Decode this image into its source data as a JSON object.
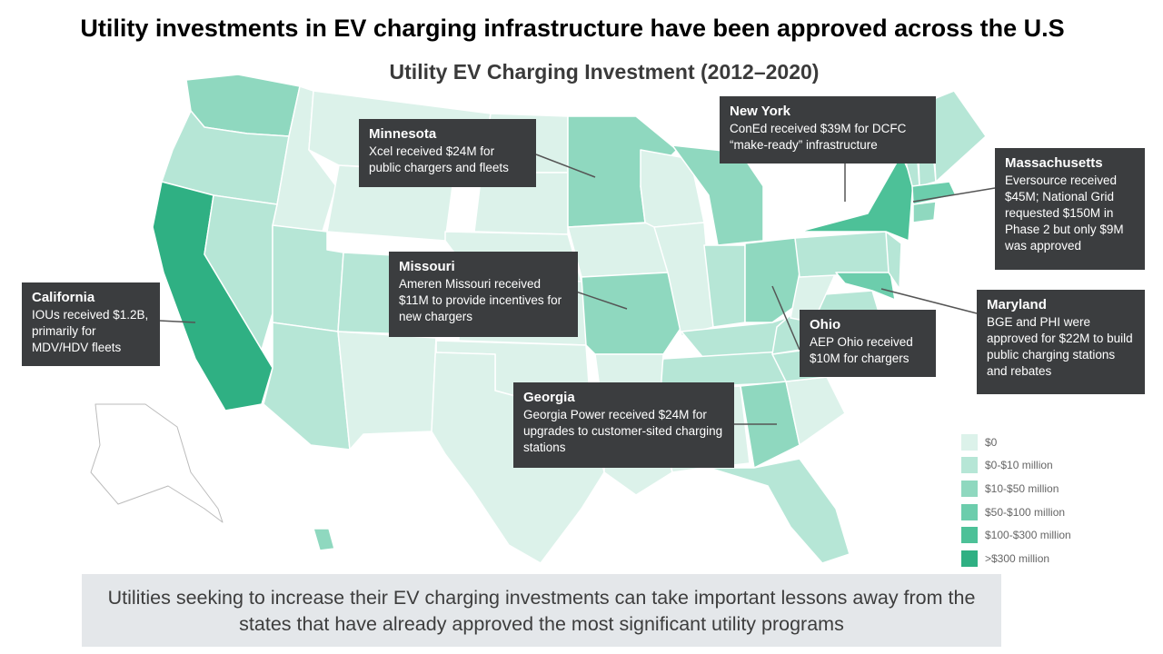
{
  "headline": "Utility investments in EV charging infrastructure have been approved across the U.S",
  "map_title": "Utility EV Charging Investment (2012–2020)",
  "colors": {
    "state_border": "#ffffff",
    "callout_bg": "#3b3d3f",
    "bottom_bg": "#e4e7ea"
  },
  "legend": [
    {
      "label": "$0",
      "color": "#dcf2ea"
    },
    {
      "label": "$0-$10 million",
      "color": "#b6e6d6"
    },
    {
      "label": "$10-$50 million",
      "color": "#8fd8bf"
    },
    {
      "label": "$50-$100 million",
      "color": "#6ccdac"
    },
    {
      "label": "$100-$300 million",
      "color": "#4dc198"
    },
    {
      "label": ">$300 million",
      "color": "#2fb083"
    }
  ],
  "callouts": {
    "california": {
      "state": "California",
      "text": "IOUs received $1.2B, primarily for MDV/HDV fleets"
    },
    "minnesota": {
      "state": "Minnesota",
      "text": "Xcel received $24M for public chargers and fleets"
    },
    "missouri": {
      "state": "Missouri",
      "text": "Ameren Missouri received $11M to provide incentives for new chargers"
    },
    "new_york": {
      "state": "New York",
      "text": "ConEd received $39M for DCFC “make-ready” infrastructure"
    },
    "massachusetts": {
      "state": "Massachusetts",
      "text": "Eversource received $45M; National Grid requested $150M in Phase 2 but only $9M was approved"
    },
    "maryland": {
      "state": "Maryland",
      "text": "BGE and PHI were approved for $22M to build public charging stations and rebates"
    },
    "ohio": {
      "state": "Ohio",
      "text": "AEP Ohio received $10M for chargers"
    },
    "georgia": {
      "state": "Georgia",
      "text": "Georgia Power received $24M for upgrades to customer-sited charging stations"
    }
  },
  "footer": "Utilities seeking to increase their EV charging investments can take important lessons away from the states that have already approved the most significant utility programs"
}
